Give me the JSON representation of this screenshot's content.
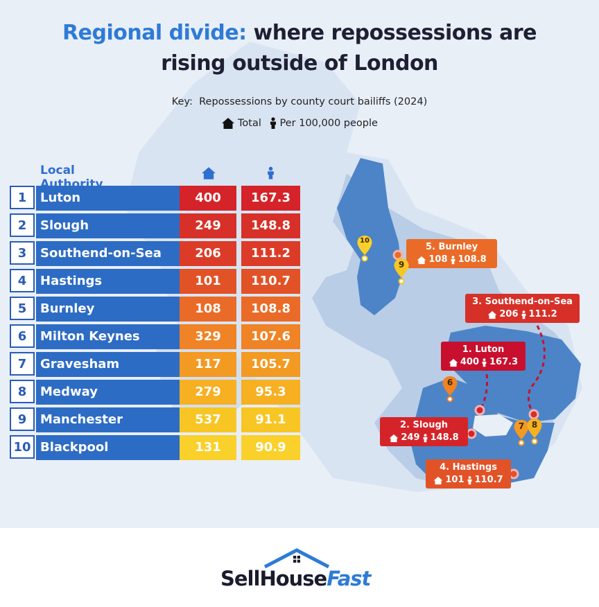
{
  "title": {
    "accent": "Regional divide:",
    "rest": " where repossessions are",
    "line2": "rising outside of London"
  },
  "key": {
    "label": "Key:",
    "description": "Repossessions by county court bailiffs (2024)",
    "total_label": "Total",
    "per_label": "Per 100,000 people"
  },
  "icons": {
    "total": "house-icon",
    "per": "person-icon"
  },
  "table_header": "Local Authority",
  "chart_data": {
    "type": "table",
    "columns": [
      "Local Authority",
      "Total",
      "Per 100,000 people"
    ],
    "rows": [
      {
        "rank": "1",
        "name": "Luton",
        "total": "400",
        "per": "167.3",
        "color": "#d42429"
      },
      {
        "rank": "2",
        "name": "Slough",
        "total": "249",
        "per": "148.8",
        "color": "#d63028"
      },
      {
        "rank": "3",
        "name": "Southend-on-Sea",
        "total": "206",
        "per": "111.2",
        "color": "#dc3c27"
      },
      {
        "rank": "4",
        "name": "Hastings",
        "total": "101",
        "per": "110.7",
        "color": "#e25227"
      },
      {
        "rank": "5",
        "name": "Burnley",
        "total": "108",
        "per": "108.8",
        "color": "#ea6b27"
      },
      {
        "rank": "6",
        "name": "Milton Keynes",
        "total": "329",
        "per": "107.6",
        "color": "#ef8325"
      },
      {
        "rank": "7",
        "name": "Gravesham",
        "total": "117",
        "per": "105.7",
        "color": "#f39a22"
      },
      {
        "rank": "8",
        "name": "Medway",
        "total": "279",
        "per": "95.3",
        "color": "#f6b022"
      },
      {
        "rank": "9",
        "name": "Manchester",
        "total": "537",
        "per": "91.1",
        "color": "#f8c624"
      },
      {
        "rank": "10",
        "name": "Blackpool",
        "total": "131",
        "per": "90.9",
        "color": "#fad02b"
      }
    ]
  },
  "callouts": {
    "burnley": {
      "title": "5. Burnley",
      "total": "108",
      "per": "108.8",
      "color": "#ea6b27"
    },
    "southend": {
      "title": "3. Southend-on-Sea",
      "total": "206",
      "per": "111.2",
      "color": "#d63028"
    },
    "luton": {
      "title": "1. Luton",
      "total": "400",
      "per": "167.3",
      "color": "#c8102e"
    },
    "slough": {
      "title": "2. Slough",
      "total": "249",
      "per": "148.8",
      "color": "#d42429"
    },
    "hastings": {
      "title": "4. Hastings",
      "total": "101",
      "per": "110.7",
      "color": "#e25227"
    }
  },
  "pins": [
    {
      "label": "10",
      "color": "#fad02b"
    },
    {
      "label": "9",
      "color": "#f8c624"
    },
    {
      "label": "6",
      "color": "#ef8325"
    },
    {
      "label": "7",
      "color": "#f39a22"
    },
    {
      "label": "8",
      "color": "#f6b022"
    }
  ],
  "logo": {
    "sell": "Sell",
    "house": "House",
    "fast": "Fast"
  }
}
